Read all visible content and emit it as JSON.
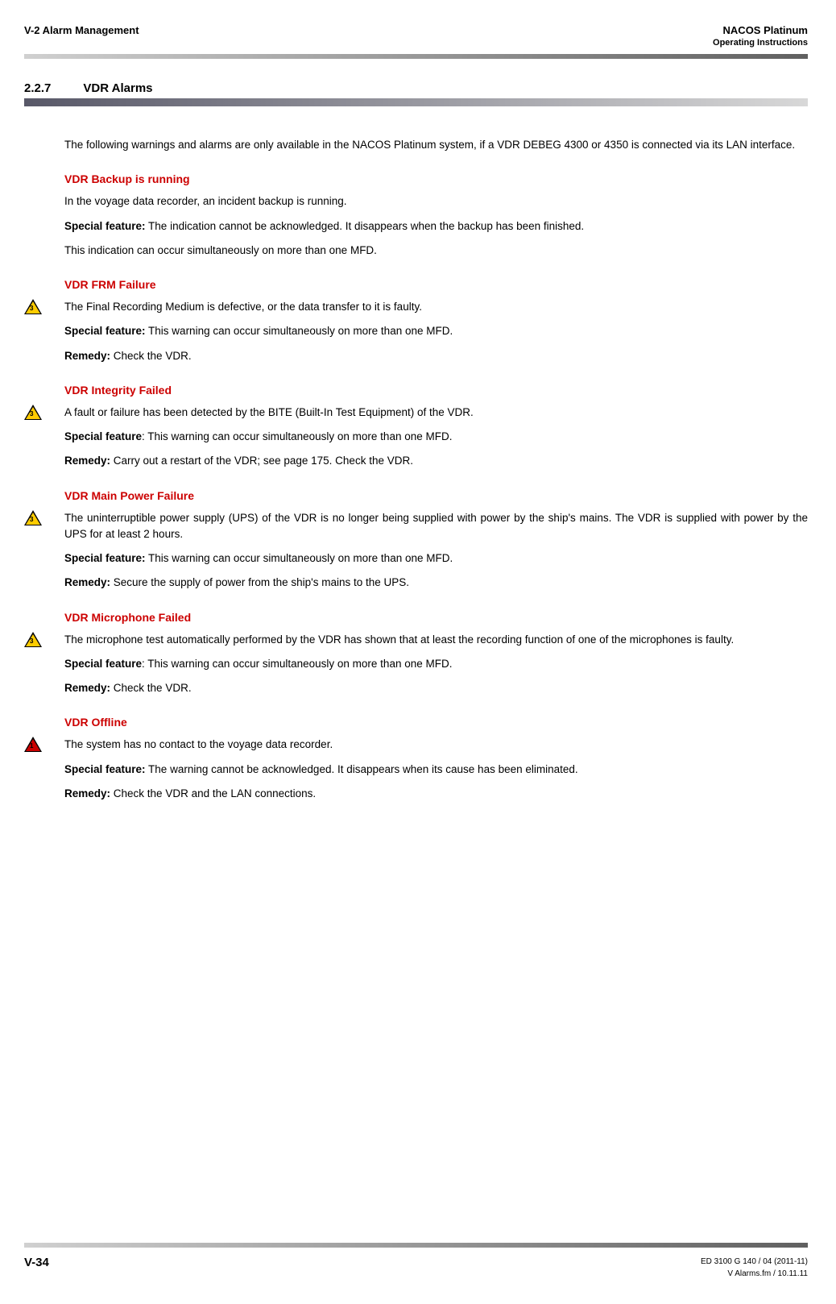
{
  "header": {
    "left": "V-2  Alarm Management",
    "right_top": "NACOS Platinum",
    "right_bottom": "Operating Instructions"
  },
  "section": {
    "number": "2.2.7",
    "title": "VDR Alarms"
  },
  "intro": "The following warnings and alarms are only available in the NACOS Platinum system, if a VDR DEBEG 4300 or 4350 is connected via its LAN interface.",
  "alarms": [
    {
      "title": "VDR Backup is running",
      "icon": null,
      "body": "In the voyage data recorder, an incident backup is running.",
      "special_label": "Special feature:",
      "special": " The indication cannot be acknowledged. It disappears when the backup has been finished.",
      "extra": "This indication can occur simultaneously on more than one MFD.",
      "remedy_label": null,
      "remedy": null
    },
    {
      "title": "VDR FRM Failure",
      "icon": "yellow",
      "badge": "3",
      "body": "The Final Recording Medium is defective, or the data transfer to it is faulty.",
      "special_label": "Special feature:",
      "special": " This warning can occur simultaneously on more than one MFD.",
      "extra": null,
      "remedy_label": "Remedy:",
      "remedy": " Check the VDR."
    },
    {
      "title": "VDR Integrity Failed",
      "icon": "yellow",
      "badge": "3",
      "body": "A fault or failure has been detected by the BITE (Built-In Test Equipment) of the VDR.",
      "special_label": "Special feature",
      "special": ": This warning can occur simultaneously on more than one MFD.",
      "extra": null,
      "remedy_label": "Remedy:",
      "remedy": " Carry out a restart of the VDR; see page 175. Check the VDR."
    },
    {
      "title": "VDR Main Power Failure",
      "icon": "yellow",
      "badge": "3",
      "body": "The uninterruptible power supply (UPS) of the VDR is no longer being supplied with power by the ship's mains. The VDR is supplied with power by the UPS for at least 2 hours.",
      "special_label": "Special feature:",
      "special": " This warning can occur simultaneously on more than one MFD.",
      "extra": null,
      "remedy_label": "Remedy:",
      "remedy": " Secure the supply of power from the ship's mains to the UPS."
    },
    {
      "title": "VDR Microphone Failed",
      "icon": "yellow",
      "badge": "3",
      "body": "The microphone test automatically performed by the VDR has shown that at least the recording function of one of the microphones is faulty.",
      "special_label": "Special feature",
      "special": ": This warning can occur simultaneously on more than one MFD.",
      "extra": null,
      "remedy_label": "Remedy:",
      "remedy": " Check the VDR."
    },
    {
      "title": "VDR Offline",
      "icon": "red",
      "badge": "1",
      "body": "The system has no contact to the voyage data recorder.",
      "special_label": "Special feature:",
      "special": " The warning cannot be acknowledged. It disappears when its cause has been eliminated.",
      "extra": null,
      "remedy_label": "Remedy:",
      "remedy": " Check the VDR and the LAN connections."
    }
  ],
  "footer": {
    "page_number": "V-34",
    "doc_ref": "ED 3100 G 140 / 04 (2011-11)",
    "file_ref": "V Alarms.fm / 10.11.11"
  }
}
